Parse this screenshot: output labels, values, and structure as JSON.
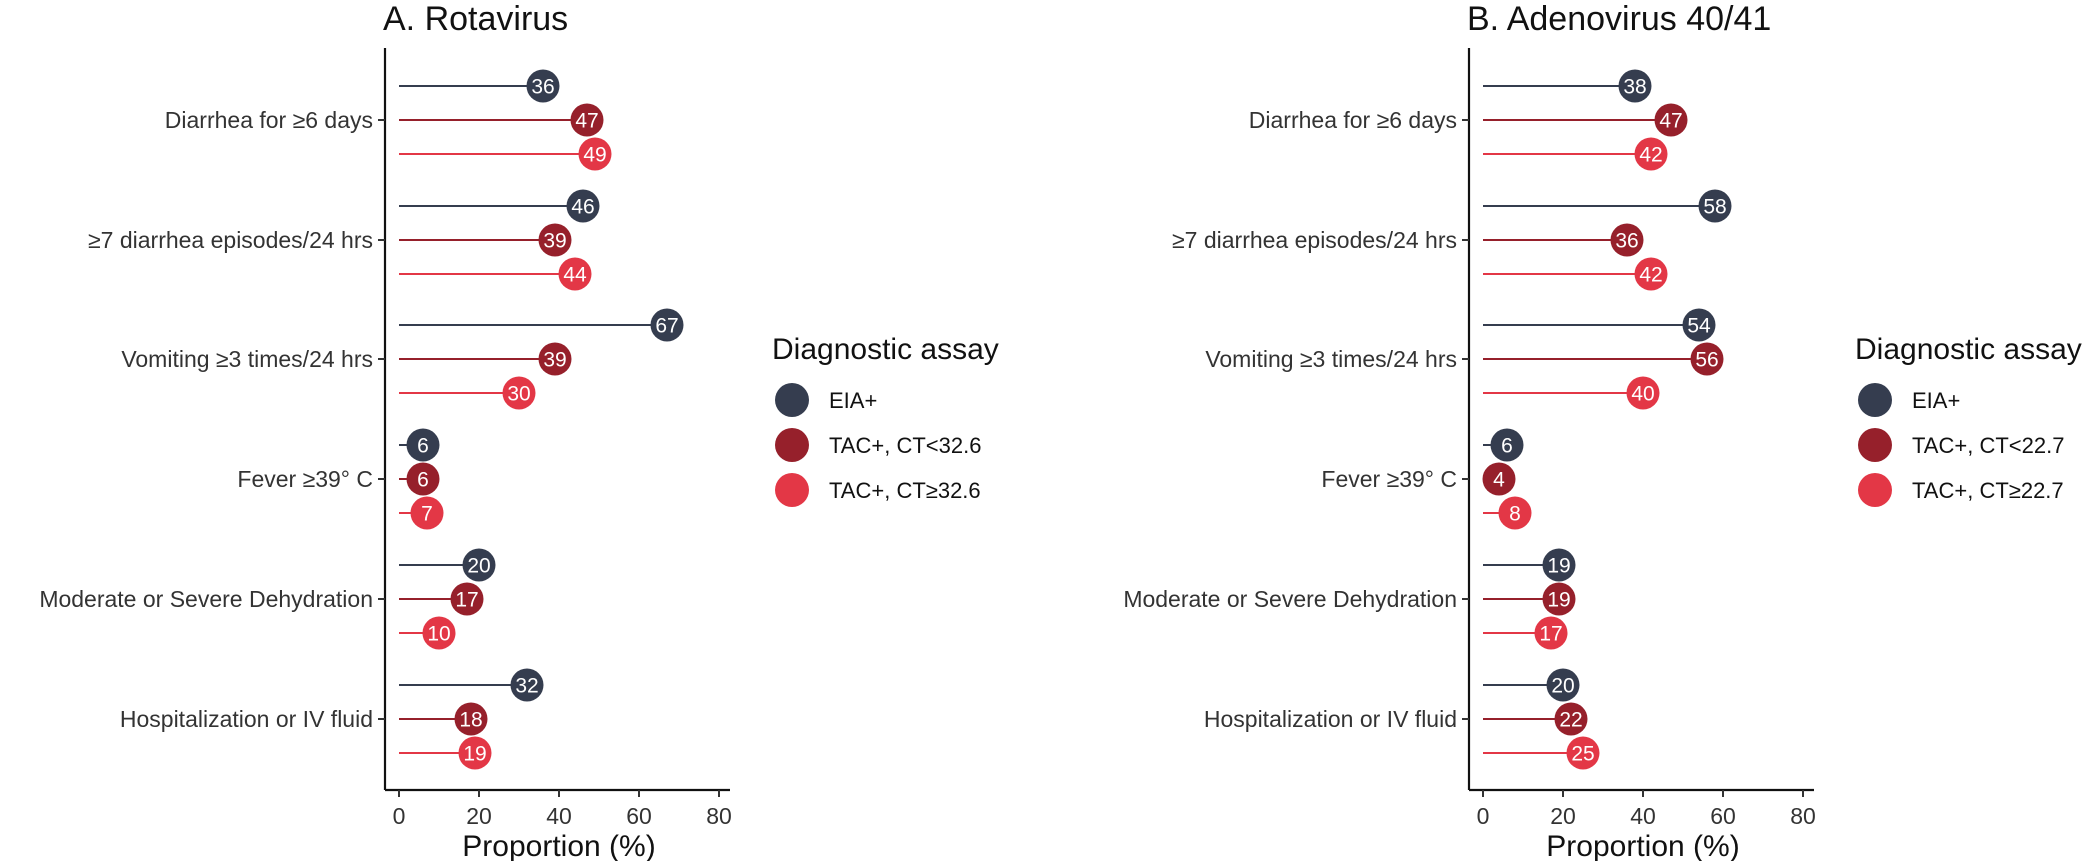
{
  "colors": {
    "eia": "#353D4F",
    "tac_low": "#96202B",
    "tac_high": "#E33746",
    "axis": "#111111",
    "background": "#FFFFFF"
  },
  "chart_data": [
    {
      "type": "lollipop",
      "title": "A. Rotavirus",
      "xlabel": "Proportion (%)",
      "ylabel": "",
      "xlim": [
        0,
        80
      ],
      "xticks": [
        "0",
        "20",
        "40",
        "60",
        "80"
      ],
      "grid": false,
      "legend": {
        "title": "Diagnostic assay",
        "placement": "right",
        "items": [
          "EIA+",
          "TAC+, CT<32.6",
          "TAC+, CT≥32.6"
        ]
      },
      "categories": [
        "Diarrhea for ≥6 days",
        "≥7 diarrhea episodes/24 hrs",
        "Vomiting ≥3 times/24 hrs",
        "Fever ≥39° C",
        "Moderate or Severe Dehydration",
        "Hospitalization or IV fluid"
      ],
      "series": [
        {
          "name": "EIA+",
          "values": [
            36,
            46,
            67,
            6,
            20,
            32
          ]
        },
        {
          "name": "TAC+, CT<32.6",
          "values": [
            47,
            39,
            39,
            6,
            17,
            18
          ]
        },
        {
          "name": "TAC+, CT≥32.6",
          "values": [
            49,
            44,
            30,
            7,
            10,
            19
          ]
        }
      ]
    },
    {
      "type": "lollipop",
      "title": "B. Adenovirus 40/41",
      "xlabel": "Proportion (%)",
      "ylabel": "",
      "xlim": [
        0,
        80
      ],
      "xticks": [
        "0",
        "20",
        "40",
        "60",
        "80"
      ],
      "grid": false,
      "legend": {
        "title": "Diagnostic assay",
        "placement": "right",
        "items": [
          "EIA+",
          "TAC+, CT<22.7",
          "TAC+, CT≥22.7"
        ]
      },
      "categories": [
        "Diarrhea for ≥6 days",
        "≥7 diarrhea episodes/24 hrs",
        "Vomiting ≥3 times/24 hrs",
        "Fever ≥39° C",
        "Moderate or Severe Dehydration",
        "Hospitalization or IV fluid"
      ],
      "series": [
        {
          "name": "EIA+",
          "values": [
            38,
            58,
            54,
            6,
            19,
            20
          ]
        },
        {
          "name": "TAC+, CT<22.7",
          "values": [
            47,
            36,
            56,
            4,
            19,
            22
          ]
        },
        {
          "name": "TAC+, CT≥22.7",
          "values": [
            42,
            42,
            40,
            8,
            17,
            25
          ]
        }
      ]
    }
  ]
}
